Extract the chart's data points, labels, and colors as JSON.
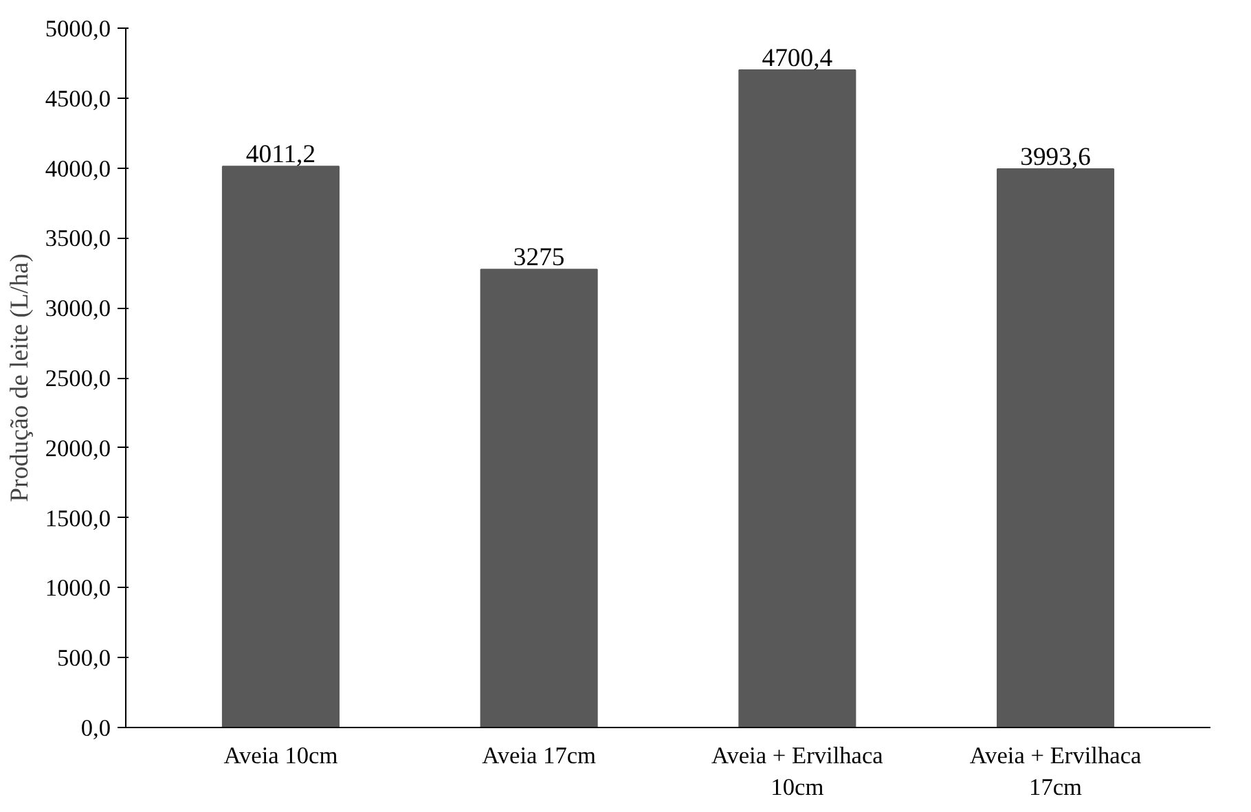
{
  "chart_data": {
    "type": "bar",
    "ylabel": "Produção de leite (L/ha)",
    "categories": [
      "Aveia 10cm",
      "Aveia 17cm",
      "Aveia + Ervilhaca\n10cm",
      "Aveia + Ervilhaca\n17cm"
    ],
    "values": [
      4011.2,
      3275,
      4700.4,
      3993.6
    ],
    "value_labels": [
      "4011,2",
      "3275",
      "4700,4",
      "3993,6"
    ],
    "color": "#595959",
    "ylim": [
      0,
      5000
    ],
    "yticks": [
      {
        "value": 0,
        "label": "0,0"
      },
      {
        "value": 500,
        "label": "500,0"
      },
      {
        "value": 1000,
        "label": "1000,0"
      },
      {
        "value": 1500,
        "label": "1500,0"
      },
      {
        "value": 2000,
        "label": "2000,0"
      },
      {
        "value": 2500,
        "label": "2500,0"
      },
      {
        "value": 3000,
        "label": "3000,0"
      },
      {
        "value": 3500,
        "label": "3500,0"
      },
      {
        "value": 4000,
        "label": "4000,0"
      },
      {
        "value": 4500,
        "label": "4500,0"
      },
      {
        "value": 5000,
        "label": "5000,0"
      }
    ],
    "grid": false
  }
}
